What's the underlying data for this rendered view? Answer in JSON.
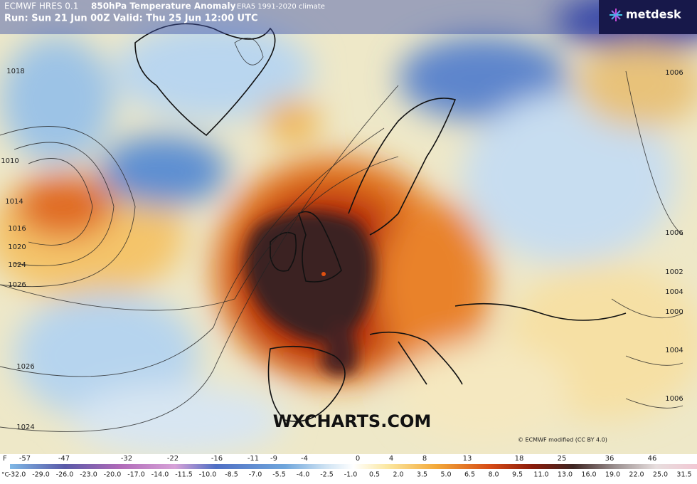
{
  "header": {
    "model": "ECMWF HRES 0.1",
    "title": "850hPa Temperature Anomaly",
    "climate": "ERA5 1991-2020 climate",
    "run": "Run: Sun 21 Jun 00Z Valid: Thu 25 Jun 12:00 UTC"
  },
  "logo": "metdesk",
  "watermark": "WXCHARTS.COM",
  "credit": "© ECMWF modified (CC BY 4.0)",
  "isobars": [
    "1018",
    "1010",
    "1014",
    "1016",
    "1020",
    "1024",
    "1026",
    "1026",
    "1024",
    "1006",
    "1006",
    "1002",
    "1004",
    "1000",
    "1004",
    "1006"
  ],
  "legend": {
    "f_unit": "F",
    "f_labels": [
      "-57",
      "-47",
      "-32",
      "-22",
      "-16",
      "-11",
      "-9",
      "-4",
      "0",
      "4",
      "8",
      "13",
      "18",
      "25",
      "36",
      "46"
    ],
    "c_unit": "°C",
    "c_labels": [
      "-32.0",
      "-29.0",
      "-26.0",
      "-23.0",
      "-20.0",
      "-17.0",
      "-14.0",
      "-11.5",
      "-10.0",
      "-8.5",
      "-7.0",
      "-5.5",
      "-4.0",
      "-2.5",
      "-1.0",
      "0.5",
      "2.0",
      "3.5",
      "5.0",
      "6.5",
      "8.0",
      "9.5",
      "11.0",
      "13.0",
      "16.0",
      "19.0",
      "22.0",
      "25.0",
      "31.5"
    ]
  }
}
